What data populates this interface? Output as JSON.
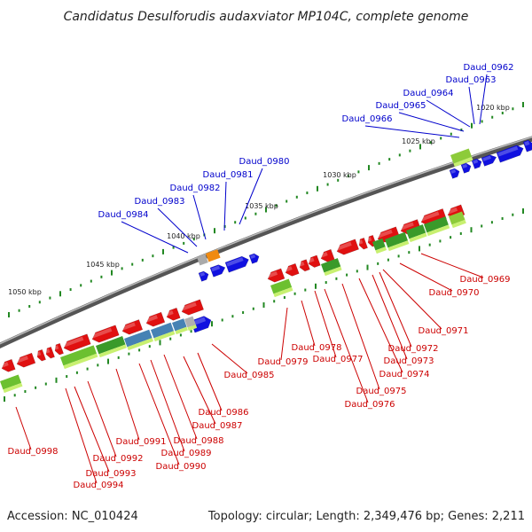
{
  "title": "Candidatus Desulforudis audaxviator MP104C, complete genome",
  "footer": {
    "accession": "Accession: NC_010424",
    "summary": "Topology: circular; Length: 2,349,476 bp; Genes: 2,211"
  },
  "kbp_labels": [
    "1020 kbp",
    "1025 kbp",
    "1030 kbp",
    "1035 kbp",
    "1040 kbp",
    "1045 kbp",
    "1050 kbp"
  ],
  "colors": {
    "forward_label": "#0000cc",
    "reverse_label": "#cc0000",
    "forward_gene": "#1010e0",
    "reverse_gene": "#e01010",
    "backbone": "#808080",
    "ticks": "#228822"
  },
  "forward_genes": [
    "Daud_0962",
    "Daud_0963",
    "Daud_0964",
    "Daud_0965",
    "Daud_0966",
    "Daud_0980",
    "Daud_0981",
    "Daud_0982",
    "Daud_0983",
    "Daud_0984"
  ],
  "reverse_genes": [
    "Daud_0969",
    "Daud_0970",
    "Daud_0971",
    "Daud_0972",
    "Daud_0973",
    "Daud_0974",
    "Daud_0975",
    "Daud_0976",
    "Daud_0977",
    "Daud_0978",
    "Daud_0979",
    "Daud_0985",
    "Daud_0986",
    "Daud_0987",
    "Daud_0988",
    "Daud_0989",
    "Daud_0990",
    "Daud_0991",
    "Daud_0992",
    "Daud_0993",
    "Daud_0994",
    "Daud_0998"
  ]
}
